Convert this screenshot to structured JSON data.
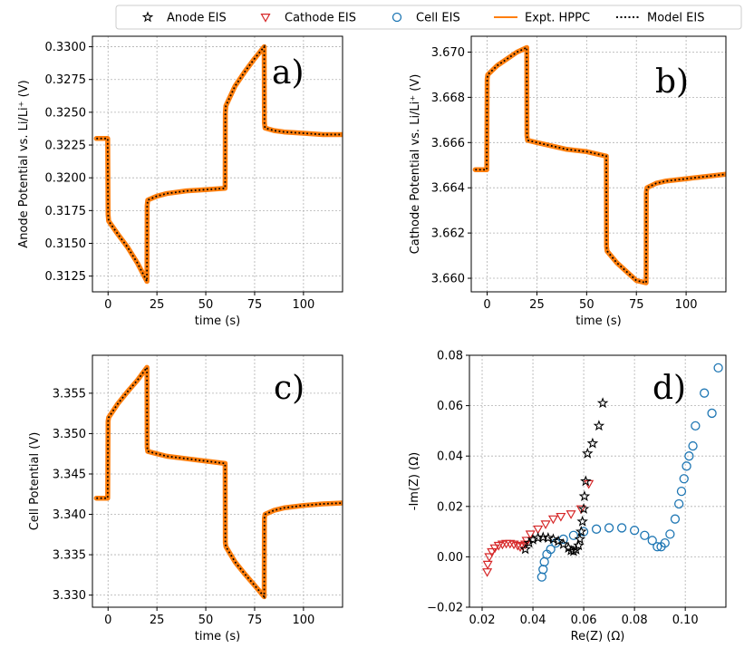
{
  "legend": {
    "placement": "top",
    "entries": [
      {
        "label": "Anode EIS",
        "marker": "star",
        "color": "#000000"
      },
      {
        "label": "Cathode EIS",
        "marker": "triangle-down",
        "color": "#d62728"
      },
      {
        "label": "Cell EIS",
        "marker": "circle",
        "color": "#1f77b4"
      },
      {
        "label": "Expt. HPPC",
        "marker": "solid-line",
        "color": "#ff7f0e"
      },
      {
        "label": "Model EIS",
        "marker": "dotted-line",
        "color": "#000000"
      }
    ]
  },
  "colors": {
    "hppc": "#ff7f0e",
    "model": "#000000",
    "anode": "#000000",
    "cathode": "#d62728",
    "cell": "#1f77b4"
  },
  "chart_data": [
    {
      "type": "line",
      "panel": "a)",
      "xlabel": "time (s)",
      "ylabel": "Anode Potential vs. Li/Li⁺ (V)",
      "xlim": [
        -8,
        120
      ],
      "ylim": [
        0.3113,
        0.3308
      ],
      "xticks": [
        0,
        25,
        50,
        75,
        100
      ],
      "xtick_labels": [
        "0",
        "25",
        "50",
        "75",
        "100"
      ],
      "yticks": [
        0.3125,
        0.315,
        0.3175,
        0.32,
        0.3225,
        0.325,
        0.3275,
        0.33
      ],
      "ytick_labels": [
        "0.3125",
        "0.3150",
        "0.3175",
        "0.3200",
        "0.3225",
        "0.3250",
        "0.3275",
        "0.3300"
      ],
      "grid": true,
      "series": [
        {
          "name": "Expt. HPPC",
          "x": [
            -6,
            -0.2,
            0,
            0.3,
            5,
            10,
            15,
            19.9,
            20,
            20.3,
            25,
            30,
            40,
            50,
            59.9,
            60,
            60.3,
            65,
            70,
            75,
            79.9,
            80,
            80.3,
            85,
            90,
            100,
            110,
            120
          ],
          "y": [
            0.323,
            0.323,
            0.3172,
            0.3167,
            0.3157,
            0.3147,
            0.3135,
            0.3121,
            0.3179,
            0.3183,
            0.3186,
            0.3188,
            0.319,
            0.3191,
            0.3192,
            0.325,
            0.3255,
            0.327,
            0.3281,
            0.3291,
            0.33,
            0.3242,
            0.3238,
            0.3236,
            0.3235,
            0.3234,
            0.3233,
            0.3233
          ]
        },
        {
          "name": "Model EIS",
          "x": [
            -6,
            -0.2,
            0,
            0.3,
            5,
            10,
            15,
            19.9,
            20,
            20.3,
            25,
            30,
            40,
            50,
            59.9,
            60,
            60.3,
            65,
            70,
            75,
            79.9,
            80,
            80.3,
            85,
            90,
            100,
            110,
            120
          ],
          "y": [
            0.323,
            0.323,
            0.3172,
            0.3167,
            0.3157,
            0.3147,
            0.3135,
            0.3121,
            0.3179,
            0.3183,
            0.3186,
            0.3188,
            0.319,
            0.3191,
            0.3192,
            0.325,
            0.3255,
            0.327,
            0.3281,
            0.3291,
            0.33,
            0.3242,
            0.3238,
            0.3236,
            0.3235,
            0.3234,
            0.3233,
            0.3233
          ]
        }
      ]
    },
    {
      "type": "line",
      "panel": "b)",
      "xlabel": "time (s)",
      "ylabel": "Cathode Potential vs. Li/Li⁺ (V)",
      "xlim": [
        -8,
        120
      ],
      "ylim": [
        3.6594,
        3.6707
      ],
      "xticks": [
        0,
        25,
        50,
        75,
        100
      ],
      "xtick_labels": [
        "0",
        "25",
        "50",
        "75",
        "100"
      ],
      "yticks": [
        3.66,
        3.662,
        3.664,
        3.666,
        3.668,
        3.67
      ],
      "ytick_labels": [
        "3.660",
        "3.662",
        "3.664",
        "3.666",
        "3.668",
        "3.670"
      ],
      "grid": true,
      "series": [
        {
          "name": "Expt. HPPC",
          "x": [
            -6,
            -0.2,
            0,
            0.3,
            5,
            10,
            15,
            19.9,
            20,
            20.3,
            25,
            30,
            40,
            50,
            59.9,
            60,
            60.3,
            65,
            70,
            75,
            79.9,
            80,
            80.3,
            85,
            90,
            100,
            110,
            120
          ],
          "y": [
            3.6648,
            3.6648,
            3.6688,
            3.669,
            3.6694,
            3.6697,
            3.67,
            3.6702,
            3.6663,
            3.6661,
            3.666,
            3.6659,
            3.6657,
            3.6656,
            3.6654,
            3.6614,
            3.6612,
            3.6607,
            3.6603,
            3.6599,
            3.6598,
            3.6638,
            3.664,
            3.6642,
            3.6643,
            3.6644,
            3.6645,
            3.6646
          ]
        },
        {
          "name": "Model EIS",
          "x": [
            -6,
            -0.2,
            0,
            0.3,
            5,
            10,
            15,
            19.9,
            20,
            20.3,
            25,
            30,
            40,
            50,
            59.9,
            60,
            60.3,
            65,
            70,
            75,
            79.9,
            80,
            80.3,
            85,
            90,
            100,
            110,
            120
          ],
          "y": [
            3.6648,
            3.6648,
            3.6688,
            3.669,
            3.6694,
            3.6697,
            3.67,
            3.6702,
            3.6663,
            3.6661,
            3.666,
            3.6659,
            3.6657,
            3.6656,
            3.6654,
            3.6614,
            3.6612,
            3.6607,
            3.6603,
            3.6599,
            3.6598,
            3.6638,
            3.664,
            3.6642,
            3.6643,
            3.6644,
            3.6645,
            3.6646
          ]
        }
      ]
    },
    {
      "type": "line",
      "panel": "c)",
      "xlabel": "time (s)",
      "ylabel": "Cell Potential (V)",
      "xlim": [
        -8,
        120
      ],
      "ylim": [
        3.3285,
        3.3597
      ],
      "xticks": [
        0,
        25,
        50,
        75,
        100
      ],
      "xtick_labels": [
        "0",
        "25",
        "50",
        "75",
        "100"
      ],
      "yticks": [
        3.33,
        3.335,
        3.34,
        3.345,
        3.35,
        3.355
      ],
      "ytick_labels": [
        "3.330",
        "3.335",
        "3.340",
        "3.345",
        "3.350",
        "3.355"
      ],
      "grid": true,
      "series": [
        {
          "name": "Expt. HPPC",
          "x": [
            -6,
            -0.2,
            0,
            0.3,
            5,
            10,
            15,
            19.9,
            20,
            20.3,
            25,
            30,
            40,
            50,
            59.9,
            60,
            60.3,
            65,
            70,
            75,
            79.9,
            80,
            80.3,
            85,
            90,
            100,
            110,
            120
          ],
          "y": [
            3.342,
            3.342,
            3.3515,
            3.352,
            3.3537,
            3.3552,
            3.3566,
            3.3582,
            3.3483,
            3.3478,
            3.3475,
            3.3472,
            3.3469,
            3.3466,
            3.3463,
            3.3365,
            3.336,
            3.3341,
            3.3326,
            3.3312,
            3.3298,
            3.3395,
            3.34,
            3.3405,
            3.3408,
            3.3411,
            3.3413,
            3.3414
          ]
        },
        {
          "name": "Model EIS",
          "x": [
            -6,
            -0.2,
            0,
            0.3,
            5,
            10,
            15,
            19.9,
            20,
            20.3,
            25,
            30,
            40,
            50,
            59.9,
            60,
            60.3,
            65,
            70,
            75,
            79.9,
            80,
            80.3,
            85,
            90,
            100,
            110,
            120
          ],
          "y": [
            3.342,
            3.342,
            3.3515,
            3.352,
            3.3537,
            3.3552,
            3.3566,
            3.3582,
            3.3483,
            3.3478,
            3.3475,
            3.3472,
            3.3469,
            3.3466,
            3.3463,
            3.3365,
            3.336,
            3.3341,
            3.3326,
            3.3312,
            3.3298,
            3.3395,
            3.34,
            3.3405,
            3.3408,
            3.3411,
            3.3413,
            3.3414
          ]
        }
      ]
    },
    {
      "type": "scatter",
      "panel": "d)",
      "xlabel": "Re(Z) (Ω)",
      "ylabel": "-Im(Z) (Ω)",
      "xlim": [
        0.015,
        0.116
      ],
      "ylim": [
        -0.02,
        0.08
      ],
      "xticks": [
        0.02,
        0.04,
        0.06,
        0.08,
        0.1
      ],
      "xtick_labels": [
        "0.02",
        "0.04",
        "0.06",
        "0.08",
        "0.10"
      ],
      "yticks": [
        -0.02,
        0,
        0.02,
        0.04,
        0.06,
        0.08
      ],
      "ytick_labels": [
        "−0.02",
        "0.00",
        "0.02",
        "0.04",
        "0.06",
        "0.08"
      ],
      "grid": true,
      "series": [
        {
          "name": "Anode EIS",
          "x": [
            0.037,
            0.0385,
            0.04,
            0.042,
            0.044,
            0.046,
            0.048,
            0.05,
            0.052,
            0.054,
            0.055,
            0.056,
            0.057,
            0.058,
            0.0585,
            0.059,
            0.0595,
            0.06,
            0.0603,
            0.0608,
            0.0615,
            0.0635,
            0.066,
            0.0675
          ],
          "y": [
            0.003,
            0.0055,
            0.0068,
            0.0075,
            0.0077,
            0.0075,
            0.007,
            0.0062,
            0.005,
            0.0035,
            0.0025,
            0.0022,
            0.0028,
            0.0045,
            0.007,
            0.01,
            0.014,
            0.019,
            0.024,
            0.03,
            0.041,
            0.045,
            0.052,
            0.061
          ]
        },
        {
          "name": "Cathode EIS",
          "x": [
            0.022,
            0.0222,
            0.0228,
            0.0238,
            0.025,
            0.0265,
            0.028,
            0.0295,
            0.031,
            0.0325,
            0.034,
            0.035,
            0.036,
            0.037,
            0.0375,
            0.039,
            0.042,
            0.045,
            0.048,
            0.051,
            0.055,
            0.059,
            0.062
          ],
          "y": [
            -0.006,
            -0.003,
            0.0,
            0.002,
            0.0035,
            0.0045,
            0.005,
            0.0053,
            0.0053,
            0.005,
            0.0045,
            0.004,
            0.0045,
            0.005,
            0.0065,
            0.009,
            0.011,
            0.013,
            0.015,
            0.016,
            0.017,
            0.019,
            0.029
          ]
        },
        {
          "name": "Cell EIS",
          "x": [
            0.0435,
            0.044,
            0.0445,
            0.0455,
            0.047,
            0.049,
            0.052,
            0.056,
            0.06,
            0.065,
            0.07,
            0.075,
            0.08,
            0.084,
            0.087,
            0.089,
            0.0905,
            0.092,
            0.094,
            0.096,
            0.0975,
            0.0985,
            0.0995,
            0.1005,
            0.1015,
            0.103,
            0.104,
            0.1075,
            0.1105,
            0.113
          ],
          "y": [
            -0.008,
            -0.005,
            -0.002,
            0.001,
            0.003,
            0.0055,
            0.007,
            0.0085,
            0.01,
            0.011,
            0.0115,
            0.0115,
            0.0105,
            0.0085,
            0.0065,
            0.004,
            0.004,
            0.0055,
            0.009,
            0.015,
            0.021,
            0.026,
            0.031,
            0.036,
            0.04,
            0.044,
            0.052,
            0.065,
            0.057,
            0.075
          ]
        }
      ]
    }
  ]
}
